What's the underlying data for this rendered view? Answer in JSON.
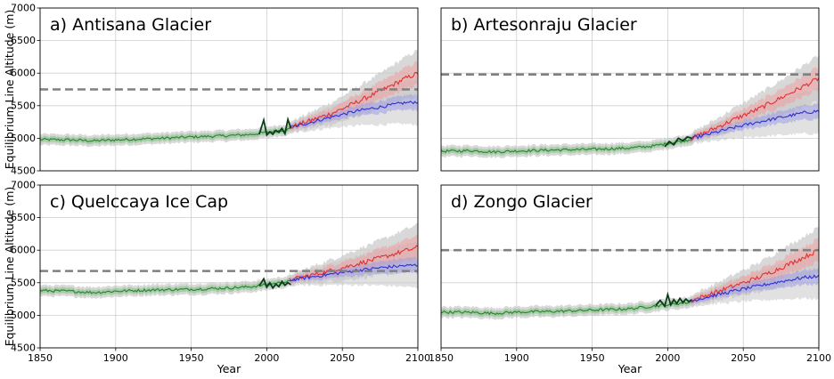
{
  "chart_data": {
    "type": "line",
    "x_label": "Year",
    "y_label": "Equilibrium Line Altitude (m)",
    "xlim": [
      1850,
      2100
    ],
    "ylim": [
      4500,
      7000
    ],
    "x_ticks": [
      "1850",
      "1900",
      "1950",
      "2000",
      "2050",
      "2100"
    ],
    "y_ticks": [
      "4500",
      "5000",
      "5500",
      "6000",
      "6500",
      "7000"
    ],
    "grid": true,
    "colors": {
      "historical_line": "#2e7d32",
      "historical_band": "#7cc47f",
      "observed_line": "#0b3d1a",
      "high_emission_line": "#e03131",
      "high_emission_band": "#f29a9a",
      "low_emission_line": "#2f2fd0",
      "low_emission_band": "#9a9ae6",
      "uncertainty_band": "#c8c8c8",
      "threshold_line": "#808080"
    },
    "panels": [
      {
        "title": "a) Antisana Glacier",
        "threshold": 5750,
        "historical": {
          "x": [
            1850,
            1870,
            1885,
            1900,
            1925,
            1950,
            1975,
            1990,
            2015
          ],
          "y": [
            4980,
            4975,
            4960,
            4975,
            4995,
            5020,
            5040,
            5060,
            5140
          ]
        },
        "observed": {
          "x": [
            1995,
            1998,
            2000,
            2002,
            2004,
            2006,
            2008,
            2010,
            2012,
            2014,
            2016
          ],
          "y": [
            5060,
            5280,
            5050,
            5100,
            5060,
            5120,
            5090,
            5150,
            5070,
            5290,
            5150
          ]
        },
        "high_emission": {
          "x": [
            2015,
            2030,
            2045,
            2060,
            2075,
            2090,
            2100
          ],
          "y": [
            5160,
            5280,
            5400,
            5560,
            5720,
            5900,
            6000
          ]
        },
        "low_emission": {
          "x": [
            2015,
            2030,
            2045,
            2060,
            2075,
            2090,
            2100
          ],
          "y": [
            5160,
            5250,
            5340,
            5420,
            5480,
            5540,
            5560
          ]
        }
      },
      {
        "title": "b) Artesonraju Glacier",
        "threshold": 5980,
        "historical": {
          "x": [
            1850,
            1870,
            1885,
            1900,
            1925,
            1950,
            1975,
            1990,
            2015
          ],
          "y": [
            4800,
            4810,
            4790,
            4805,
            4820,
            4830,
            4850,
            4880,
            4980
          ]
        },
        "observed": {
          "x": [
            1998,
            2001,
            2004,
            2007,
            2010,
            2013,
            2016
          ],
          "y": [
            4870,
            4950,
            4900,
            5000,
            4960,
            5020,
            5000
          ]
        },
        "high_emission": {
          "x": [
            2015,
            2030,
            2045,
            2060,
            2075,
            2090,
            2100
          ],
          "y": [
            4990,
            5140,
            5300,
            5450,
            5620,
            5800,
            5920
          ]
        },
        "low_emission": {
          "x": [
            2015,
            2030,
            2045,
            2060,
            2075,
            2090,
            2100
          ],
          "y": [
            4990,
            5080,
            5170,
            5250,
            5320,
            5390,
            5420
          ]
        }
      },
      {
        "title": "c) Quelccaya Ice Cap",
        "threshold": 5680,
        "historical": {
          "x": [
            1850,
            1870,
            1885,
            1900,
            1925,
            1950,
            1975,
            1990,
            2015
          ],
          "y": [
            5380,
            5370,
            5350,
            5370,
            5390,
            5400,
            5420,
            5440,
            5520
          ]
        },
        "observed": {
          "x": [
            1995,
            1998,
            2000,
            2002,
            2004,
            2006,
            2008,
            2010,
            2012,
            2014,
            2016
          ],
          "y": [
            5450,
            5560,
            5430,
            5500,
            5420,
            5480,
            5440,
            5520,
            5460,
            5500,
            5470
          ]
        },
        "high_emission": {
          "x": [
            2015,
            2030,
            2045,
            2060,
            2075,
            2090,
            2100
          ],
          "y": [
            5540,
            5620,
            5700,
            5790,
            5880,
            5980,
            6040
          ]
        },
        "low_emission": {
          "x": [
            2015,
            2030,
            2045,
            2060,
            2075,
            2090,
            2100
          ],
          "y": [
            5540,
            5590,
            5640,
            5690,
            5730,
            5760,
            5770
          ]
        }
      },
      {
        "title": "d) Zongo Glacier",
        "threshold": 6000,
        "historical": {
          "x": [
            1850,
            1870,
            1885,
            1900,
            1925,
            1950,
            1975,
            1990,
            2015
          ],
          "y": [
            5050,
            5045,
            5030,
            5050,
            5060,
            5080,
            5100,
            5140,
            5200
          ]
        },
        "observed": {
          "x": [
            1992,
            1995,
            1998,
            2000,
            2002,
            2004,
            2006,
            2008,
            2010,
            2012,
            2014,
            2016
          ],
          "y": [
            5150,
            5230,
            5140,
            5320,
            5160,
            5240,
            5180,
            5260,
            5200,
            5250,
            5210,
            5240
          ]
        },
        "high_emission": {
          "x": [
            2015,
            2030,
            2045,
            2060,
            2075,
            2090,
            2100
          ],
          "y": [
            5220,
            5340,
            5460,
            5580,
            5730,
            5890,
            6000
          ]
        },
        "low_emission": {
          "x": [
            2015,
            2030,
            2045,
            2060,
            2075,
            2090,
            2100
          ],
          "y": [
            5220,
            5300,
            5380,
            5450,
            5520,
            5580,
            5600
          ]
        }
      }
    ]
  }
}
